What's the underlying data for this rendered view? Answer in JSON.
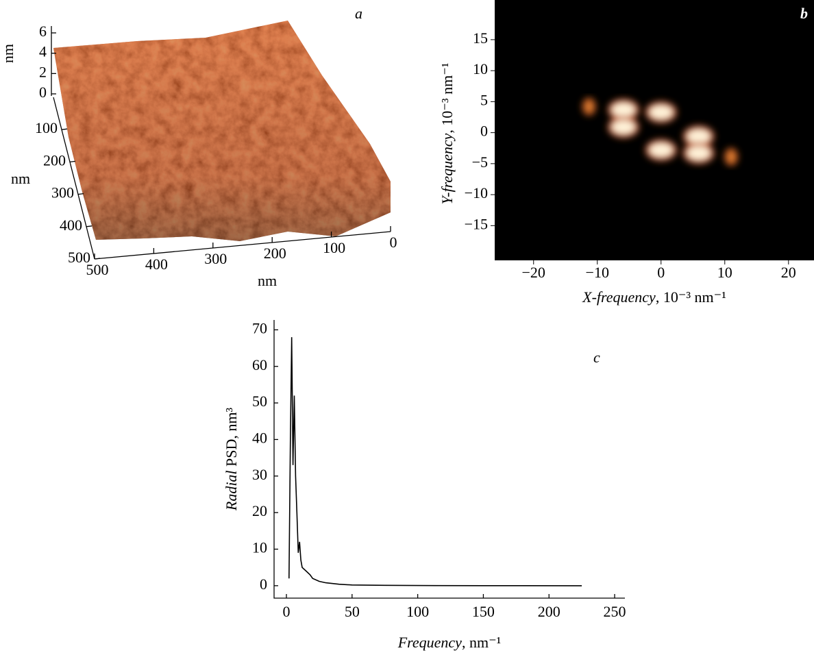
{
  "chart_data": [
    {
      "type": "surface3d",
      "label": "a",
      "zlabel": "nm",
      "ylabel": "nm",
      "xlabel": "nm",
      "zlim": [
        0,
        6
      ],
      "zticks": [
        0,
        2,
        4,
        6
      ],
      "ylim": [
        0,
        500
      ],
      "yticks": [
        100,
        200,
        300,
        400,
        500
      ],
      "xlim": [
        0,
        500
      ],
      "xticks": [
        500,
        400,
        300,
        200,
        100,
        0
      ]
    },
    {
      "type": "heatmap",
      "label": "b",
      "xlabel": [
        "X-frequency",
        ", 10⁻³ nm⁻¹"
      ],
      "ylabel": [
        "Y-frequency",
        ", 10⁻³ nm⁻¹"
      ],
      "xlim": [
        -26.1,
        24
      ],
      "ylim": [
        -20.6,
        21.4
      ],
      "xticks": [
        {
          "value": -20,
          "label": "−20"
        },
        {
          "value": -10,
          "label": "−10"
        },
        0,
        10,
        20
      ],
      "yticks": [
        15,
        10,
        5,
        0,
        {
          "value": -5,
          "label": "−5"
        },
        {
          "value": -10,
          "label": "−10"
        },
        {
          "value": -15,
          "label": "−15"
        }
      ],
      "x": [
        -5.9,
        -5.9,
        0,
        0,
        5.9,
        5.9,
        -11.3,
        11
      ],
      "y": [
        3.7,
        0.9,
        3.3,
        -2.8,
        -0.6,
        -3.3,
        4.2,
        -3.9
      ]
    },
    {
      "type": "line",
      "label": "c",
      "xlabel": [
        "Frequency",
        ", nm⁻¹"
      ],
      "ylabel": [
        "Radial",
        " PSD, nm³"
      ],
      "xlim": [
        -9.4,
        257.8
      ],
      "ylim": [
        -3.4,
        72.7
      ],
      "xticks": [
        0,
        50,
        100,
        150,
        200,
        250
      ],
      "yticks": [
        0,
        10,
        20,
        30,
        40,
        50,
        60,
        70
      ],
      "color": "#000000",
      "x": [
        2,
        3,
        4,
        5,
        6,
        7,
        8,
        9,
        10,
        11,
        12,
        15,
        18,
        20,
        25,
        30,
        40,
        50,
        75,
        100,
        150,
        225
      ],
      "y": [
        2,
        40,
        68,
        33,
        52,
        30,
        20,
        9,
        12,
        7,
        5,
        4,
        3,
        2,
        1.2,
        0.8,
        0.4,
        0.2,
        0.1,
        0.05,
        0.02,
        0
      ]
    }
  ]
}
